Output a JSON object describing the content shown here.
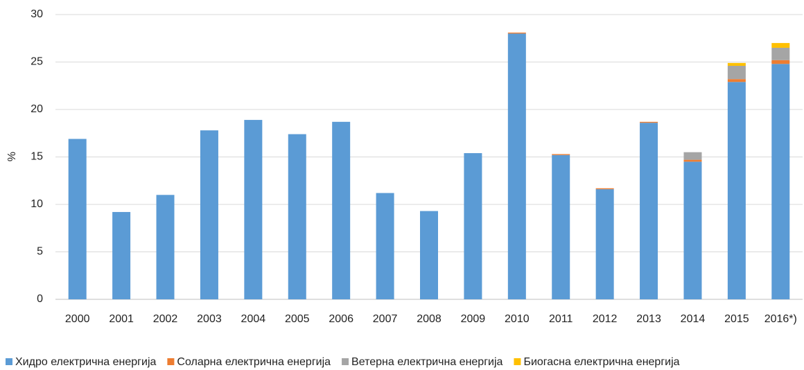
{
  "chart_data": {
    "type": "stacked_bar",
    "y_label": "%",
    "categories": [
      "2000",
      "2001",
      "2002",
      "2003",
      "2004",
      "2005",
      "2006",
      "2007",
      "2008",
      "2009",
      "2010",
      "2011",
      "2012",
      "2013",
      "2014",
      "2015",
      "2016*)"
    ],
    "series": [
      {
        "name": "Хидро електрична енергија",
        "color": "#5b9bd5",
        "values": [
          16.9,
          9.2,
          11.0,
          17.8,
          18.9,
          17.4,
          18.7,
          11.2,
          9.3,
          15.4,
          28.0,
          15.2,
          11.6,
          18.6,
          14.5,
          22.9,
          24.8
        ]
      },
      {
        "name": "Соларна електрична енергија",
        "color": "#ed7d31",
        "values": [
          0,
          0,
          0,
          0,
          0,
          0,
          0,
          0,
          0,
          0,
          0.1,
          0.1,
          0.1,
          0.1,
          0.2,
          0.3,
          0.4
        ]
      },
      {
        "name": "Ветерна електрична енергија",
        "color": "#a5a5a5",
        "values": [
          0,
          0,
          0,
          0,
          0,
          0,
          0,
          0,
          0,
          0,
          0,
          0,
          0,
          0,
          0.8,
          1.4,
          1.3
        ]
      },
      {
        "name": "Биогасна електрична енергија",
        "color": "#ffc000",
        "values": [
          0,
          0,
          0,
          0,
          0,
          0,
          0,
          0,
          0,
          0,
          0,
          0,
          0,
          0,
          0,
          0.3,
          0.5
        ]
      }
    ],
    "ylim": [
      0,
      30
    ],
    "yticks": [
      0,
      5,
      10,
      15,
      20,
      25,
      30
    ],
    "grid": true,
    "legend": "bottom"
  }
}
